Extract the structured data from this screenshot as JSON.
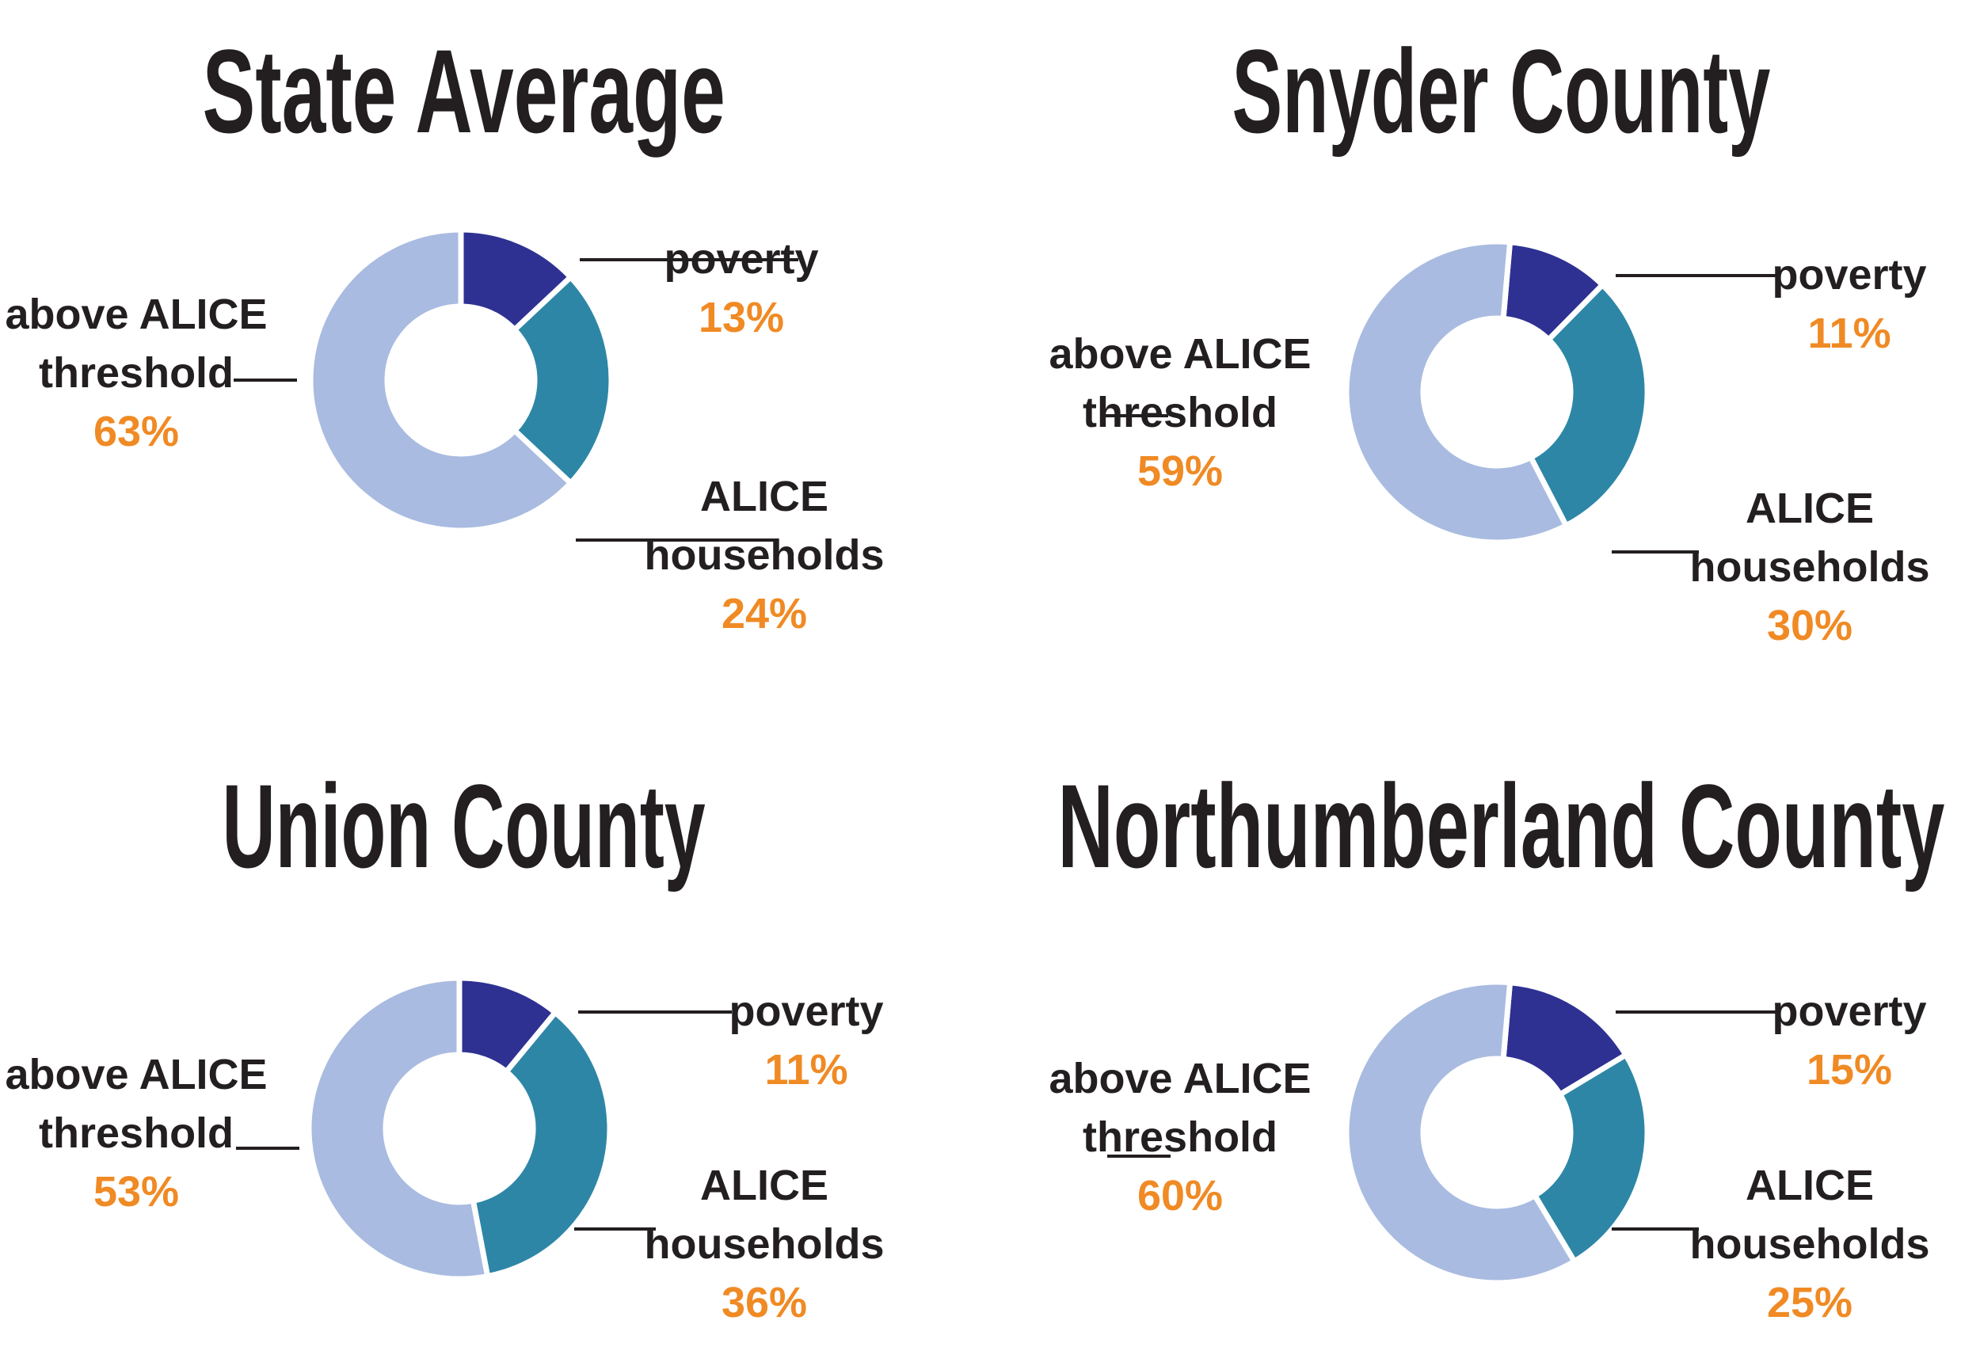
{
  "colors": {
    "poverty": "#2e3192",
    "alice": "#2e86a6",
    "above": "#a9bbe0",
    "percent_text": "#f08a24",
    "text": "#231f20"
  },
  "chart_data": [
    {
      "type": "pie",
      "title": "State Average",
      "categories": [
        "poverty",
        "ALICE households",
        "above ALICE threshold"
      ],
      "values": [
        13,
        24,
        63
      ],
      "labels": {
        "poverty": {
          "text": [
            "poverty"
          ],
          "percent": "13%"
        },
        "alice": {
          "text": [
            "ALICE",
            "households"
          ],
          "percent": "24%"
        },
        "above": {
          "text": [
            "above ALICE",
            "threshold"
          ],
          "percent": "63%"
        }
      }
    },
    {
      "type": "pie",
      "title": "Snyder County",
      "categories": [
        "poverty",
        "ALICE households",
        "above ALICE threshold"
      ],
      "values": [
        11,
        30,
        59
      ],
      "labels": {
        "poverty": {
          "text": [
            "poverty"
          ],
          "percent": "11%"
        },
        "alice": {
          "text": [
            "ALICE",
            "households"
          ],
          "percent": "30%"
        },
        "above": {
          "text": [
            "above ALICE",
            "threshold"
          ],
          "percent": "59%"
        }
      }
    },
    {
      "type": "pie",
      "title": "Union County",
      "categories": [
        "poverty",
        "ALICE households",
        "above ALICE threshold"
      ],
      "values": [
        11,
        36,
        53
      ],
      "labels": {
        "poverty": {
          "text": [
            "poverty"
          ],
          "percent": "11%"
        },
        "alice": {
          "text": [
            "ALICE",
            "households"
          ],
          "percent": "36%"
        },
        "above": {
          "text": [
            "above ALICE",
            "threshold"
          ],
          "percent": "53%"
        }
      }
    },
    {
      "type": "pie",
      "title": "Northumberland County",
      "categories": [
        "poverty",
        "ALICE households",
        "above ALICE threshold"
      ],
      "values": [
        15,
        25,
        60
      ],
      "labels": {
        "poverty": {
          "text": [
            "poverty"
          ],
          "percent": "15%"
        },
        "alice": {
          "text": [
            "ALICE",
            "households"
          ],
          "percent": "25%"
        },
        "above": {
          "text": [
            "above ALICE",
            "threshold"
          ],
          "percent": "60%"
        }
      }
    }
  ]
}
